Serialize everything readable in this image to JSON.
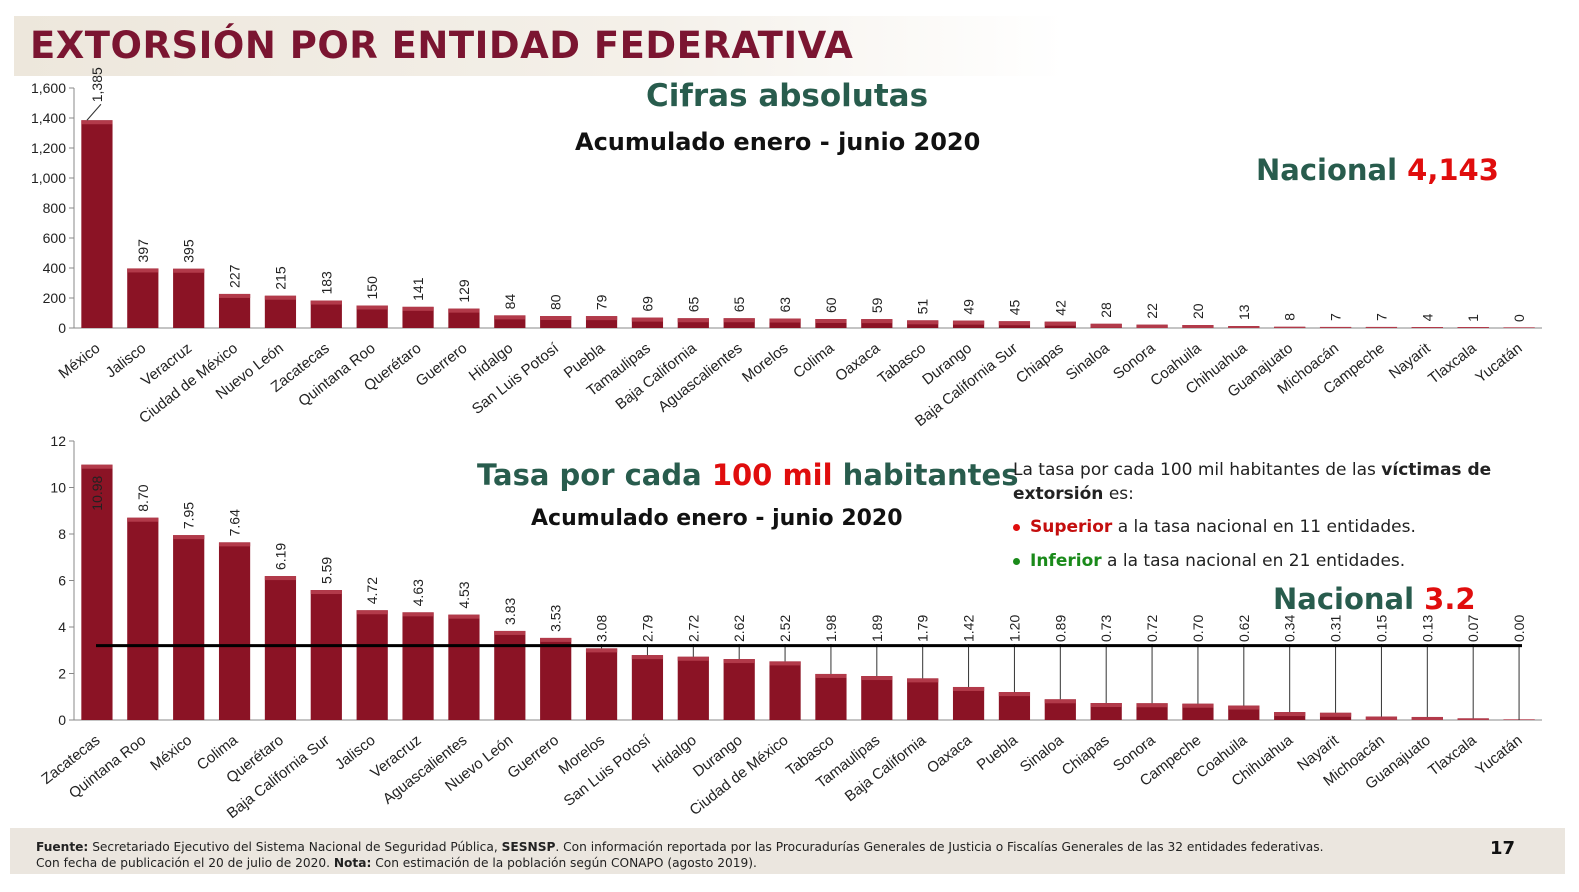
{
  "title": "EXTORSIÓN POR ENTIDAD FEDERATIVA",
  "top": {
    "heading": "Cifras absolutas",
    "subheading": "Acumulado enero - junio 2020",
    "national_label": "Nacional",
    "national_value": "4,143"
  },
  "bottom": {
    "heading_a": "Tasa por cada",
    "heading_b": "100 mil",
    "heading_c": "habitantes",
    "subheading": "Acumulado enero - junio 2020",
    "national_label": "Nacional",
    "national_value": "3.2"
  },
  "note": {
    "line_a": "La tasa por cada 100 mil habitantes de las",
    "line_b": "víctimas de extorsión",
    "line_c": "es:",
    "bullet1_strong": "Superior",
    "bullet1_text": "a la tasa nacional en 11 entidades.",
    "bullet2_strong": "Inferior",
    "bullet2_text": "a la tasa nacional en 21 entidades."
  },
  "footer": {
    "fuente_label": "Fuente:",
    "fuente_text_a": "Secretariado Ejecutivo del Sistema Nacional de Seguridad Pública,",
    "fuente_strong": "SESNSP",
    "fuente_text_b": ". Con información reportada por las Procuradurías Generales de Justicia o Fiscalías Generales de las 32 entidades federativas.",
    "line2_a": "Con fecha de publicación el 20  de julio de 2020.",
    "nota_label": "Nota:",
    "line2_b": "Con estimación de la población según CONAPO (agosto 2019)."
  },
  "page_number": "17",
  "colors": {
    "bar": "#8b1325",
    "title": "#7b1531",
    "heading_green": "#285c4d",
    "accent_red": "#e00d0d",
    "bullet_green": "#1a8a1a"
  },
  "chart_data": [
    {
      "type": "bar",
      "title": "Cifras absolutas",
      "categories": [
        "México",
        "Jalisco",
        "Veracruz",
        "Ciudad de México",
        "Nuevo León",
        "Zacatecas",
        "Quintana Roo",
        "Querétaro",
        "Guerrero",
        "Hidalgo",
        "San Luis Potosí",
        "Puebla",
        "Tamaulipas",
        "Baja California",
        "Aguascalientes",
        "Morelos",
        "Colima",
        "Oaxaca",
        "Tabasco",
        "Durango",
        "Baja California Sur",
        "Chiapas",
        "Sinaloa",
        "Sonora",
        "Coahuila",
        "Chihuahua",
        "Guanajuato",
        "Michoacán",
        "Campeche",
        "Nayarit",
        "Tlaxcala",
        "Yucatán"
      ],
      "values": [
        1385,
        397,
        395,
        227,
        215,
        183,
        150,
        141,
        129,
        84,
        80,
        79,
        69,
        65,
        65,
        63,
        60,
        59,
        51,
        49,
        45,
        42,
        28,
        22,
        20,
        13,
        8,
        7,
        7,
        4,
        1,
        0
      ],
      "value_labels": [
        "1,385",
        "397",
        "395",
        "227",
        "215",
        "183",
        "150",
        "141",
        "129",
        "84",
        "80",
        "79",
        "69",
        "65",
        "65",
        "63",
        "60",
        "59",
        "51",
        "49",
        "45",
        "42",
        "28",
        "22",
        "20",
        "13",
        "8",
        "7",
        "7",
        "4",
        "1",
        "0"
      ],
      "ylim": [
        0,
        1600
      ],
      "yticks": [
        "0",
        "200",
        "400",
        "600",
        "800",
        "1,000",
        "1,200",
        "1,400",
        "1,600"
      ],
      "ytick_values": [
        0,
        200,
        400,
        600,
        800,
        1000,
        1200,
        1400,
        1600
      ],
      "national_total": 4143
    },
    {
      "type": "bar",
      "title": "Tasa por cada 100 mil habitantes",
      "categories": [
        "Zacatecas",
        "Quintana Roo",
        "México",
        "Colima",
        "Querétaro",
        "Baja California Sur",
        "Jalisco",
        "Veracruz",
        "Aguascalientes",
        "Nuevo León",
        "Guerrero",
        "Morelos",
        "San Luis Potosí",
        "Hidalgo",
        "Durango",
        "Ciudad de México",
        "Tabasco",
        "Tamaulipas",
        "Baja California",
        "Oaxaca",
        "Puebla",
        "Sinaloa",
        "Chiapas",
        "Sonora",
        "Campeche",
        "Coahuila",
        "Chihuahua",
        "Nayarit",
        "Michoacán",
        "Guanajuato",
        "Tlaxcala",
        "Yucatán"
      ],
      "values": [
        10.98,
        8.7,
        7.95,
        7.64,
        6.19,
        5.59,
        4.72,
        4.63,
        4.53,
        3.83,
        3.53,
        3.08,
        2.79,
        2.72,
        2.62,
        2.52,
        1.98,
        1.89,
        1.79,
        1.42,
        1.2,
        0.89,
        0.73,
        0.72,
        0.7,
        0.62,
        0.34,
        0.31,
        0.15,
        0.13,
        0.07,
        0.0
      ],
      "value_labels": [
        "10.98",
        "8.70",
        "7.95",
        "7.64",
        "6.19",
        "5.59",
        "4.72",
        "4.63",
        "4.53",
        "3.83",
        "3.53",
        "3.08",
        "2.79",
        "2.72",
        "2.62",
        "2.52",
        "1.98",
        "1.89",
        "1.79",
        "1.42",
        "1.20",
        "0.89",
        "0.73",
        "0.72",
        "0.70",
        "0.62",
        "0.34",
        "0.31",
        "0.15",
        "0.13",
        "0.07",
        "0.00"
      ],
      "ylim": [
        0,
        12
      ],
      "yticks": [
        "0",
        "2",
        "4",
        "6",
        "8",
        "10",
        "12"
      ],
      "ytick_values": [
        0,
        2,
        4,
        6,
        8,
        10,
        12
      ],
      "reference_line": 3.2
    }
  ]
}
